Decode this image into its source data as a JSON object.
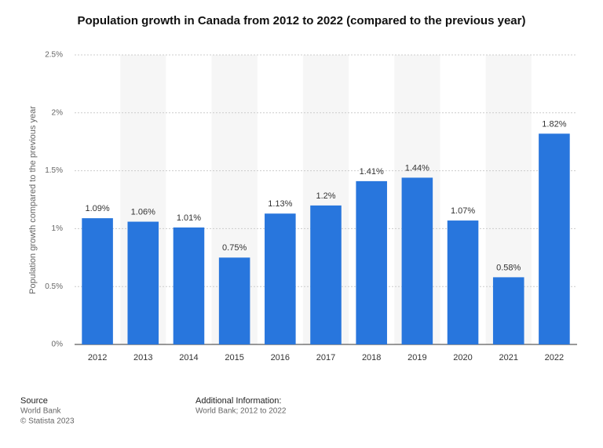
{
  "chart_data": {
    "type": "bar",
    "title": "Population growth in Canada from 2012 to 2022 (compared to the previous year)",
    "y_label": "Population growth compared to the previous year",
    "categories": [
      "2012",
      "2013",
      "2014",
      "2015",
      "2016",
      "2017",
      "2018",
      "2019",
      "2020",
      "2021",
      "2022"
    ],
    "values": [
      1.09,
      1.06,
      1.01,
      0.75,
      1.13,
      1.2,
      1.41,
      1.44,
      1.07,
      0.58,
      1.82
    ],
    "value_labels": [
      "1.09%",
      "1.06%",
      "1.01%",
      "0.75%",
      "1.13%",
      "1.2%",
      "1.41%",
      "1.44%",
      "1.07%",
      "0.58%",
      "1.82%"
    ],
    "color": "#2876dd",
    "ylim": [
      0,
      2.5
    ],
    "yticks": [
      {
        "value": 0,
        "label": "0%"
      },
      {
        "value": 0.5,
        "label": "0.5%"
      },
      {
        "value": 1,
        "label": "1%"
      },
      {
        "value": 1.5,
        "label": "1.5%"
      },
      {
        "value": 2,
        "label": "2%"
      },
      {
        "value": 2.5,
        "label": "2.5%"
      }
    ],
    "grid": true
  },
  "footer": {
    "source_title": "Source",
    "source": "World Bank",
    "copyright": "© Statista 2023",
    "info_title": "Additional Information:",
    "info": "World Bank; 2012 to 2022"
  }
}
